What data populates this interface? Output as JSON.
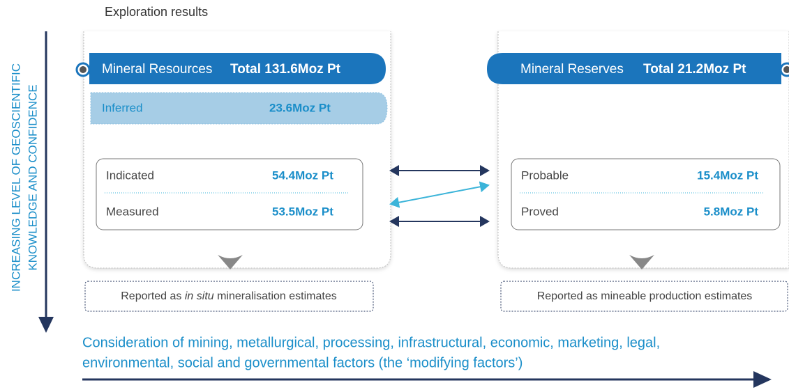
{
  "axis_label": [
    "INCREASING LEVEL OF GEOSCIENTIFIC",
    "KNOWLEDGE AND CONFIDENCE"
  ],
  "exploration_title": "Exploration results",
  "resources": {
    "title": "Mineral Resources",
    "total": "Total 131.6Moz Pt",
    "rows": [
      {
        "label": "Inferred",
        "value": "23.6Moz Pt"
      },
      {
        "label": "Indicated",
        "value": "54.4Moz Pt"
      },
      {
        "label": "Measured",
        "value": "53.5Moz Pt"
      }
    ],
    "footer": [
      "Reported as ",
      "in situ",
      " mineralisation estimates"
    ]
  },
  "reserves": {
    "title": "Mineral Reserves",
    "total": "Total 21.2Moz Pt",
    "rows": [
      {
        "label": "Probable",
        "value": "15.4Moz Pt"
      },
      {
        "label": "Proved",
        "value": "5.8Moz Pt"
      }
    ],
    "footer": "Reported as mineable production estimates"
  },
  "factors": [
    "Consideration of mining, metallurgical, processing, infrastructural, economic, marketing, legal,",
    "environmental, social and governmental factors (the ‘modifying factors’)"
  ]
}
